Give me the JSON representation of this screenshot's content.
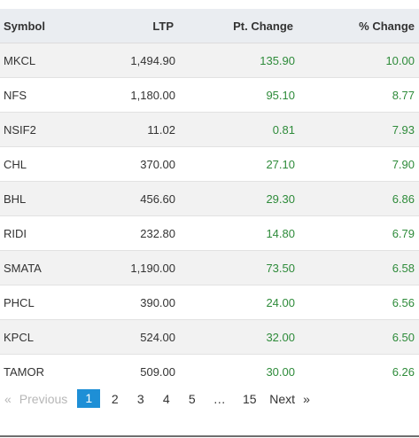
{
  "table": {
    "headers": {
      "symbol": "Symbol",
      "ltp": "LTP",
      "pt_change": "Pt. Change",
      "pct_change": "% Change"
    },
    "rows": [
      {
        "symbol": "MKCL",
        "ltp": "1,494.90",
        "pt_change": "135.90",
        "pct_change": "10.00"
      },
      {
        "symbol": "NFS",
        "ltp": "1,180.00",
        "pt_change": "95.10",
        "pct_change": "8.77"
      },
      {
        "symbol": "NSIF2",
        "ltp": "11.02",
        "pt_change": "0.81",
        "pct_change": "7.93"
      },
      {
        "symbol": "CHL",
        "ltp": "370.00",
        "pt_change": "27.10",
        "pct_change": "7.90"
      },
      {
        "symbol": "BHL",
        "ltp": "456.60",
        "pt_change": "29.30",
        "pct_change": "6.86"
      },
      {
        "symbol": "RIDI",
        "ltp": "232.80",
        "pt_change": "14.80",
        "pct_change": "6.79"
      },
      {
        "symbol": "SMATA",
        "ltp": "1,190.00",
        "pt_change": "73.50",
        "pct_change": "6.58"
      },
      {
        "symbol": "PHCL",
        "ltp": "390.00",
        "pt_change": "24.00",
        "pct_change": "6.56"
      },
      {
        "symbol": "KPCL",
        "ltp": "524.00",
        "pt_change": "32.00",
        "pct_change": "6.50"
      },
      {
        "symbol": "TAMOR",
        "ltp": "509.00",
        "pt_change": "30.00",
        "pct_change": "6.26"
      }
    ],
    "positive_color": "#2e8b3a"
  },
  "pagination": {
    "prev_arrow": "«",
    "prev_label": "Previous",
    "pages": [
      "1",
      "2",
      "3",
      "4",
      "5"
    ],
    "active_page": "1",
    "ellipsis": "…",
    "last_page": "15",
    "next_label": "Next",
    "next_arrow": "»",
    "active_color": "#1e8fd6"
  }
}
